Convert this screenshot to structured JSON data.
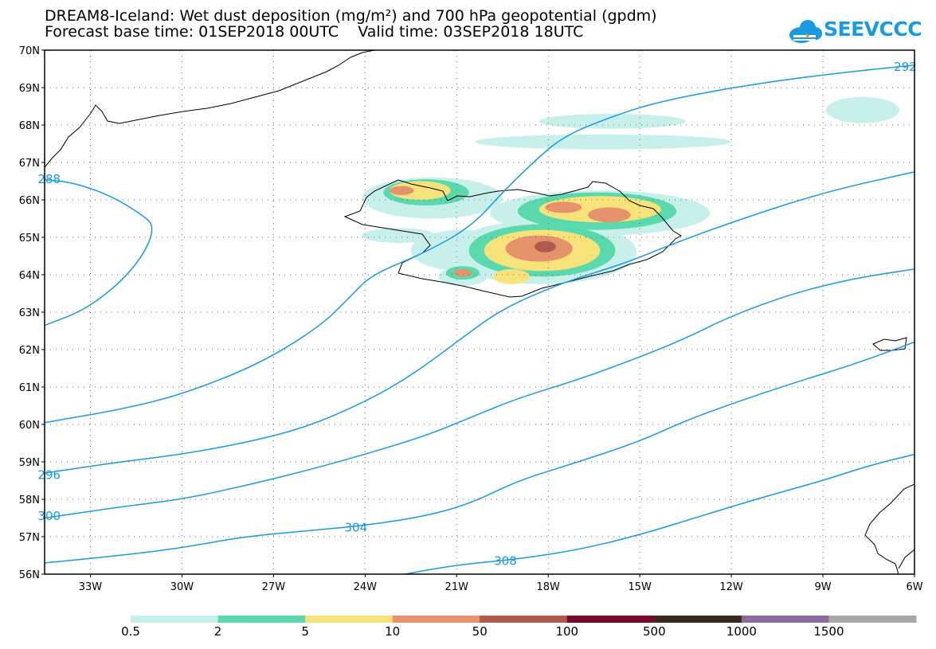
{
  "chart_data": {
    "type": "contour_map",
    "title": "DREAM8-Iceland: Wet dust deposition (mg/m²) and 700 hPa geopotential (gpdm)",
    "subtitle": "Forecast base time: 01SEP2018 00UTC    Valid time: 03SEP2018 18UTC",
    "logo_text": "SEEVCCC",
    "lon_range": [
      -34.5,
      -6
    ],
    "lat_range": [
      56,
      70
    ],
    "x_ticks": [
      "33W",
      "30W",
      "27W",
      "24W",
      "21W",
      "18W",
      "15W",
      "12W",
      "9W",
      "6W"
    ],
    "x_tick_values": [
      -33,
      -30,
      -27,
      -24,
      -21,
      -18,
      -15,
      -12,
      -9,
      -6
    ],
    "y_ticks": [
      "56N",
      "57N",
      "58N",
      "59N",
      "60N",
      "61N",
      "62N",
      "63N",
      "64N",
      "65N",
      "66N",
      "67N",
      "68N",
      "69N",
      "70N"
    ],
    "y_tick_values": [
      56,
      57,
      58,
      59,
      60,
      61,
      62,
      63,
      64,
      65,
      66,
      67,
      68,
      69,
      70
    ],
    "grid": true,
    "contour_color": "#1a9ae0",
    "contour_labels": [
      {
        "text": "304",
        "lon": -24.3,
        "lat": 57.25
      },
      {
        "text": "308",
        "lon": -19.4,
        "lat": 56.35
      },
      {
        "text": "288",
        "lon": -34.35,
        "lat": 66.55
      },
      {
        "text": "296",
        "lon": -34.35,
        "lat": 58.65
      },
      {
        "text": "300",
        "lon": -34.35,
        "lat": 57.55
      },
      {
        "text": "292",
        "lon": -6.3,
        "lat": 69.55
      }
    ],
    "contours": [
      {
        "level": 288,
        "points": [
          [
            -34.5,
            66.55
          ],
          [
            -33.5,
            66.45
          ],
          [
            -32.3,
            66.1
          ],
          [
            -31.3,
            65.6
          ],
          [
            -30.9,
            65.3
          ],
          [
            -31.2,
            64.6
          ],
          [
            -32,
            63.8
          ],
          [
            -33.2,
            63.05
          ],
          [
            -34.5,
            62.65
          ]
        ]
      },
      {
        "level": 292,
        "points": [
          [
            -34.5,
            60.05
          ],
          [
            -32,
            60.4
          ],
          [
            -30,
            60.8
          ],
          [
            -27.5,
            61.6
          ],
          [
            -25.5,
            62.6
          ],
          [
            -24.5,
            63.4
          ],
          [
            -23.8,
            64
          ],
          [
            -22,
            64.6
          ],
          [
            -20.5,
            65.3
          ],
          [
            -19.5,
            66.2
          ],
          [
            -18.5,
            67
          ],
          [
            -17.5,
            67.7
          ],
          [
            -16,
            68.2
          ],
          [
            -14.5,
            68.6
          ],
          [
            -12,
            69
          ],
          [
            -9,
            69.35
          ],
          [
            -6,
            69.6
          ]
        ]
      },
      {
        "level": 296,
        "points": [
          [
            -34.5,
            58.7
          ],
          [
            -32,
            59
          ],
          [
            -30,
            59.2
          ],
          [
            -28,
            59.5
          ],
          [
            -26,
            59.9
          ],
          [
            -24,
            60.6
          ],
          [
            -22.5,
            61.3
          ],
          [
            -21,
            62.2
          ],
          [
            -19.5,
            63.1
          ],
          [
            -17.5,
            63.8
          ],
          [
            -15.5,
            64.3
          ],
          [
            -14,
            64.8
          ],
          [
            -12,
            65.4
          ],
          [
            -9,
            66.2
          ],
          [
            -6,
            66.75
          ]
        ]
      },
      {
        "level": 300,
        "points": [
          [
            -34.5,
            57.5
          ],
          [
            -32,
            57.8
          ],
          [
            -30,
            58
          ],
          [
            -28,
            58.35
          ],
          [
            -26,
            58.75
          ],
          [
            -24,
            59.2
          ],
          [
            -22,
            59.7
          ],
          [
            -20.5,
            60.2
          ],
          [
            -19,
            60.7
          ],
          [
            -17,
            61.2
          ],
          [
            -15,
            61.8
          ],
          [
            -13.5,
            62.3
          ],
          [
            -12,
            62.9
          ],
          [
            -10,
            63.5
          ],
          [
            -8,
            63.9
          ],
          [
            -6,
            64.15
          ]
        ]
      },
      {
        "level": 304,
        "points": [
          [
            -34.5,
            56.3
          ],
          [
            -32,
            56.5
          ],
          [
            -30,
            56.7
          ],
          [
            -28,
            57
          ],
          [
            -26,
            57.15
          ],
          [
            -24,
            57.3
          ],
          [
            -22,
            57.55
          ],
          [
            -20.5,
            57.9
          ],
          [
            -19,
            58.5
          ],
          [
            -17,
            59
          ],
          [
            -15,
            59.55
          ],
          [
            -13.5,
            60.1
          ],
          [
            -12,
            60.55
          ],
          [
            -10,
            61.1
          ],
          [
            -8,
            61.6
          ],
          [
            -6,
            62.2
          ]
        ]
      },
      {
        "level": 308,
        "points": [
          [
            -22.7,
            56
          ],
          [
            -21,
            56.25
          ],
          [
            -19,
            56.4
          ],
          [
            -17,
            56.65
          ],
          [
            -15,
            57.05
          ],
          [
            -13,
            57.55
          ],
          [
            -11,
            58.05
          ],
          [
            -9,
            58.5
          ],
          [
            -7.5,
            58.9
          ],
          [
            -6,
            59.2
          ]
        ]
      }
    ],
    "fill_regions": [
      {
        "level_index": 0,
        "center": [
          -20.8,
          64.65
        ],
        "r": [
          1.7,
          0.55
        ]
      },
      {
        "level_index": 0,
        "center": [
          -18.2,
          64.6
        ],
        "r": [
          3.1,
          0.85
        ]
      },
      {
        "level_index": 0,
        "center": [
          -16.3,
          65.65
        ],
        "r": [
          3.6,
          0.6
        ]
      },
      {
        "level_index": 0,
        "center": [
          -21.8,
          66.05
        ],
        "r": [
          2.3,
          0.55
        ]
      },
      {
        "level_index": 0,
        "center": [
          -22.9,
          65.05
        ],
        "r": [
          1.2,
          0.2
        ]
      },
      {
        "level_index": 0,
        "center": [
          -16.2,
          67.55
        ],
        "r": [
          4.2,
          0.2
        ]
      },
      {
        "level_index": 0,
        "center": [
          -15.9,
          68.1
        ],
        "r": [
          2.4,
          0.2
        ]
      },
      {
        "level_index": 0,
        "center": [
          -7.7,
          68.4
        ],
        "r": [
          1.2,
          0.35
        ]
      },
      {
        "level_index": 0,
        "center": [
          -20.8,
          63.95
        ],
        "r": [
          0.8,
          0.25
        ]
      },
      {
        "level_index": 1,
        "center": [
          -18.2,
          64.65
        ],
        "r": [
          2.4,
          0.7
        ]
      },
      {
        "level_index": 1,
        "center": [
          -16.4,
          65.7
        ],
        "r": [
          2.6,
          0.5
        ]
      },
      {
        "level_index": 1,
        "center": [
          -22,
          66.2
        ],
        "r": [
          1.4,
          0.35
        ]
      },
      {
        "level_index": 1,
        "center": [
          -20.8,
          64.05
        ],
        "r": [
          0.55,
          0.18
        ]
      },
      {
        "level_index": 2,
        "center": [
          -18.2,
          64.65
        ],
        "r": [
          1.9,
          0.55
        ]
      },
      {
        "level_index": 2,
        "center": [
          -16.3,
          65.75
        ],
        "r": [
          2.0,
          0.35
        ]
      },
      {
        "level_index": 2,
        "center": [
          -22.2,
          66.25
        ],
        "r": [
          1.0,
          0.25
        ]
      },
      {
        "level_index": 2,
        "center": [
          -19.2,
          63.95
        ],
        "r": [
          0.6,
          0.2
        ]
      },
      {
        "level_index": 3,
        "center": [
          -18.3,
          64.7
        ],
        "r": [
          1.1,
          0.35
        ]
      },
      {
        "level_index": 3,
        "center": [
          -16,
          65.6
        ],
        "r": [
          0.7,
          0.2
        ]
      },
      {
        "level_index": 3,
        "center": [
          -17.5,
          65.8
        ],
        "r": [
          0.6,
          0.15
        ]
      },
      {
        "level_index": 3,
        "center": [
          -22.8,
          66.25
        ],
        "r": [
          0.4,
          0.12
        ]
      },
      {
        "level_index": 3,
        "center": [
          -20.8,
          64.05
        ],
        "r": [
          0.3,
          0.1
        ]
      },
      {
        "level_index": 4,
        "center": [
          -18.1,
          64.75
        ],
        "r": [
          0.35,
          0.15
        ]
      }
    ],
    "colorbar": {
      "labels": [
        "0.5",
        "2",
        "5",
        "10",
        "50",
        "100",
        "500",
        "1000",
        "1500"
      ],
      "colors": [
        "#c8f0ea",
        "#5ad9ad",
        "#f8e27a",
        "#e6926a",
        "#b05a4e",
        "#7a0a2a",
        "#3a2a1e",
        "#8a6aa0",
        "#a9a9a9"
      ]
    }
  }
}
